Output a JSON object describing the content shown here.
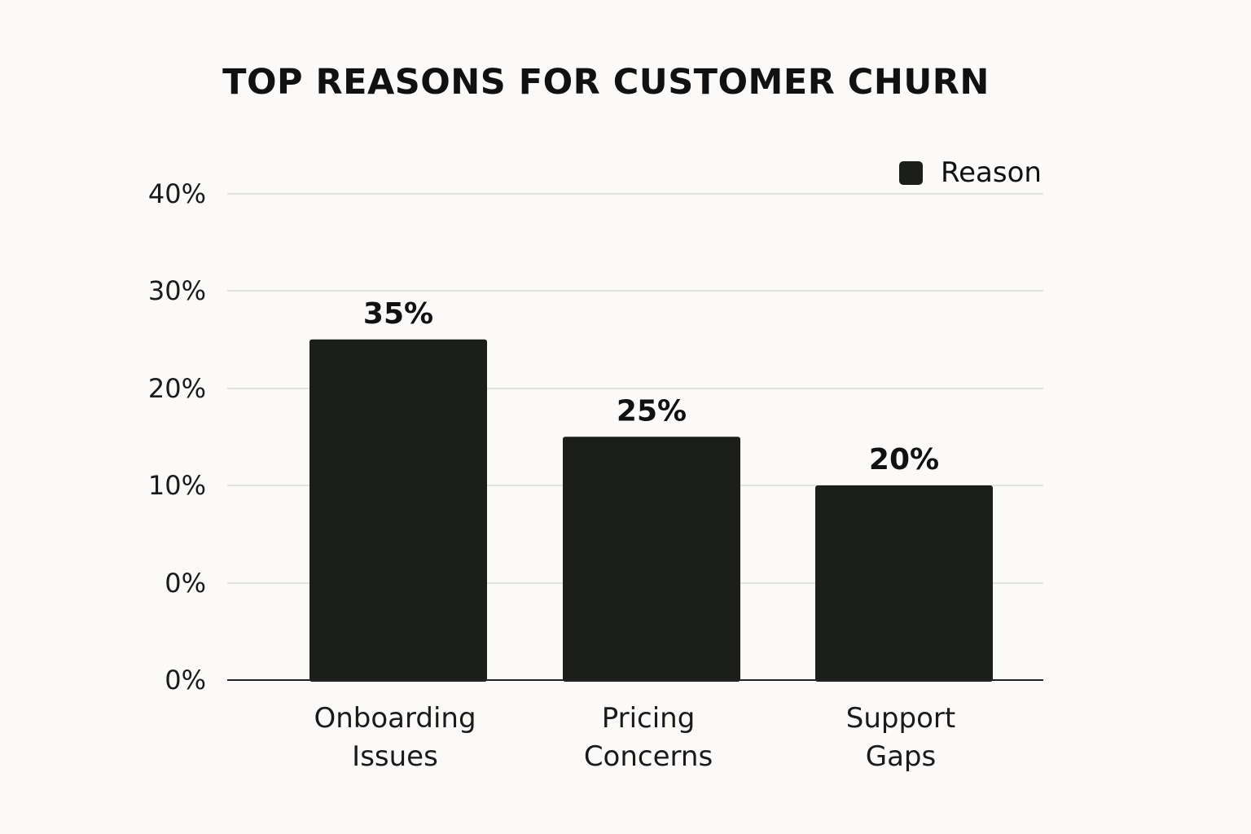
{
  "chart_data": {
    "type": "bar",
    "title": "TOP REASONS FOR CUSTOMER CHURN",
    "categories": [
      "Onboarding Issues",
      "Pricing Concerns",
      "Support Gaps"
    ],
    "category_lines": [
      [
        "Onboarding",
        "Issues"
      ],
      [
        "Pricing",
        "Concerns"
      ],
      [
        "Support",
        "Gaps"
      ]
    ],
    "series": [
      {
        "name": "Reason",
        "values": [
          35,
          25,
          20
        ],
        "color": "#1b1e1b"
      }
    ],
    "data_labels": [
      "35%",
      "25%",
      "20%"
    ],
    "y_ticks": [
      "0%",
      "0%",
      "10%",
      "20%",
      "30%",
      "40%"
    ],
    "xlabel": "",
    "ylabel": "",
    "grid": true,
    "legend_position": "top-right"
  }
}
